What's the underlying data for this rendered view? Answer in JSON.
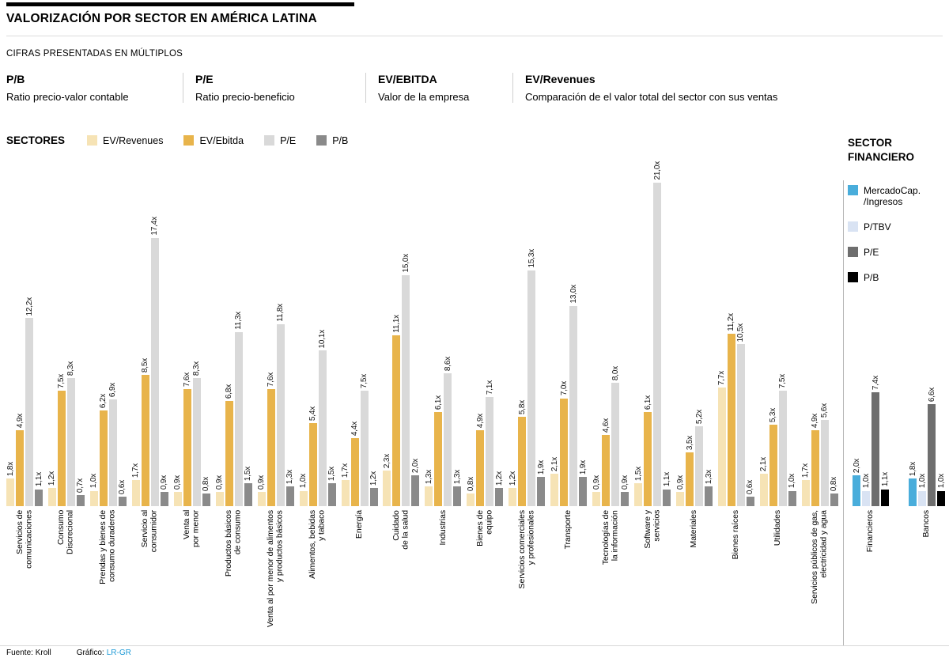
{
  "header": {
    "title": "VALORIZACIÓN POR SECTOR EN AMÉRICA LATINA",
    "subtitle": "CIFRAS PRESENTADAS EN MÚLTIPLOS",
    "definitions": [
      {
        "term": "P/B",
        "desc": "Ratio precio-valor contable"
      },
      {
        "term": "P/E",
        "desc": "Ratio precio-beneficio"
      },
      {
        "term": "EV/EBITDA",
        "desc": "Valor de la empresa"
      },
      {
        "term": "EV/Revenues",
        "desc": "Comparación de el valor total del sector con sus ventas"
      }
    ]
  },
  "legend": {
    "title": "SECTORES",
    "items": [
      {
        "label": "EV/Revenues",
        "color": "#F6E3B5"
      },
      {
        "label": "EV/Ebitda",
        "color": "#E8B44B"
      },
      {
        "label": "P/E",
        "color": "#D9D9D9"
      },
      {
        "label": "P/B",
        "color": "#8A8A8A"
      }
    ]
  },
  "financial_legend": {
    "title": "SECTOR\nFINANCIERO",
    "items": [
      {
        "label": "MercadoCap.\n/Ingresos",
        "color": "#49ADDB"
      },
      {
        "label": "P/TBV",
        "color": "#D9E3F3"
      },
      {
        "label": "P/E",
        "color": "#6E6E6E"
      },
      {
        "label": "P/B",
        "color": "#000000"
      }
    ]
  },
  "chart_data": {
    "type": "bar",
    "unit": "múltiplos (x)",
    "value_suffix": "x",
    "grid": false,
    "legend_position": "top",
    "ymax": 21.0,
    "series": [
      "EV/Revenues",
      "EV/Ebitda",
      "P/E",
      "P/B"
    ],
    "sectors": [
      {
        "name": "Servicios de\ncomunicaciones",
        "values": [
          1.8,
          4.9,
          12.2,
          1.1
        ]
      },
      {
        "name": "Consumo\nDiscrecional",
        "values": [
          1.2,
          7.5,
          8.3,
          0.7
        ]
      },
      {
        "name": "Prendas y bienes de\nconsumo duraderos",
        "values": [
          1.0,
          6.2,
          6.9,
          0.6
        ]
      },
      {
        "name": "Servicio al\nconsumidor",
        "values": [
          1.7,
          8.5,
          17.4,
          0.9
        ]
      },
      {
        "name": "Venta al\npor menor",
        "values": [
          0.9,
          7.6,
          8.3,
          0.8
        ]
      },
      {
        "name": "Productos básicos\nde consumo",
        "values": [
          0.9,
          6.8,
          11.3,
          1.5
        ]
      },
      {
        "name": "Venta al por menor de alimentos\ny productos básicos",
        "values": [
          0.9,
          7.6,
          11.8,
          1.3
        ]
      },
      {
        "name": "Alimentos, bebidas\ny tabaco",
        "values": [
          1.0,
          5.4,
          10.1,
          1.5
        ]
      },
      {
        "name": "Energía",
        "values": [
          1.7,
          4.4,
          7.5,
          1.2
        ]
      },
      {
        "name": "Cuidado\nde la salud",
        "values": [
          2.3,
          11.1,
          15.0,
          2.0
        ]
      },
      {
        "name": "Industrias",
        "values": [
          1.3,
          6.1,
          8.6,
          1.3
        ]
      },
      {
        "name": "Bienes de\nequipo",
        "values": [
          0.8,
          4.9,
          7.1,
          1.2
        ]
      },
      {
        "name": "Servicios comerciales\ny profesionales",
        "values": [
          1.2,
          5.8,
          15.3,
          1.9
        ]
      },
      {
        "name": "Transporte",
        "values": [
          2.1,
          7.0,
          13.0,
          1.9
        ]
      },
      {
        "name": "Tecnologías de\nla información",
        "values": [
          0.9,
          4.6,
          8.0,
          0.9
        ]
      },
      {
        "name": "Software y\nservicios",
        "values": [
          1.5,
          6.1,
          21.0,
          1.1
        ]
      },
      {
        "name": "Materiales",
        "values": [
          0.9,
          3.5,
          5.2,
          1.3
        ]
      },
      {
        "name": "Bienes raíces",
        "values": [
          7.7,
          11.2,
          10.5,
          0.6
        ]
      },
      {
        "name": "Utilidades",
        "values": [
          2.1,
          5.3,
          7.5,
          1.0
        ]
      },
      {
        "name": "Servicios públicos de gas,\nelectricidad y agua",
        "values": [
          1.7,
          4.9,
          5.6,
          0.8
        ]
      }
    ],
    "financial_series": [
      "MercadoCap./Ingresos",
      "P/TBV",
      "P/E",
      "P/B"
    ],
    "financial_sectors": [
      {
        "name": "Financieros",
        "values": [
          2.0,
          1.0,
          7.4,
          1.1
        ]
      },
      {
        "name": "Bancos",
        "values": [
          1.8,
          1.0,
          6.6,
          1.0
        ]
      }
    ]
  },
  "footer": {
    "source": "Fuente: Kroll",
    "credit_label": "Gráfico:",
    "credit_value": "LR-GR"
  }
}
